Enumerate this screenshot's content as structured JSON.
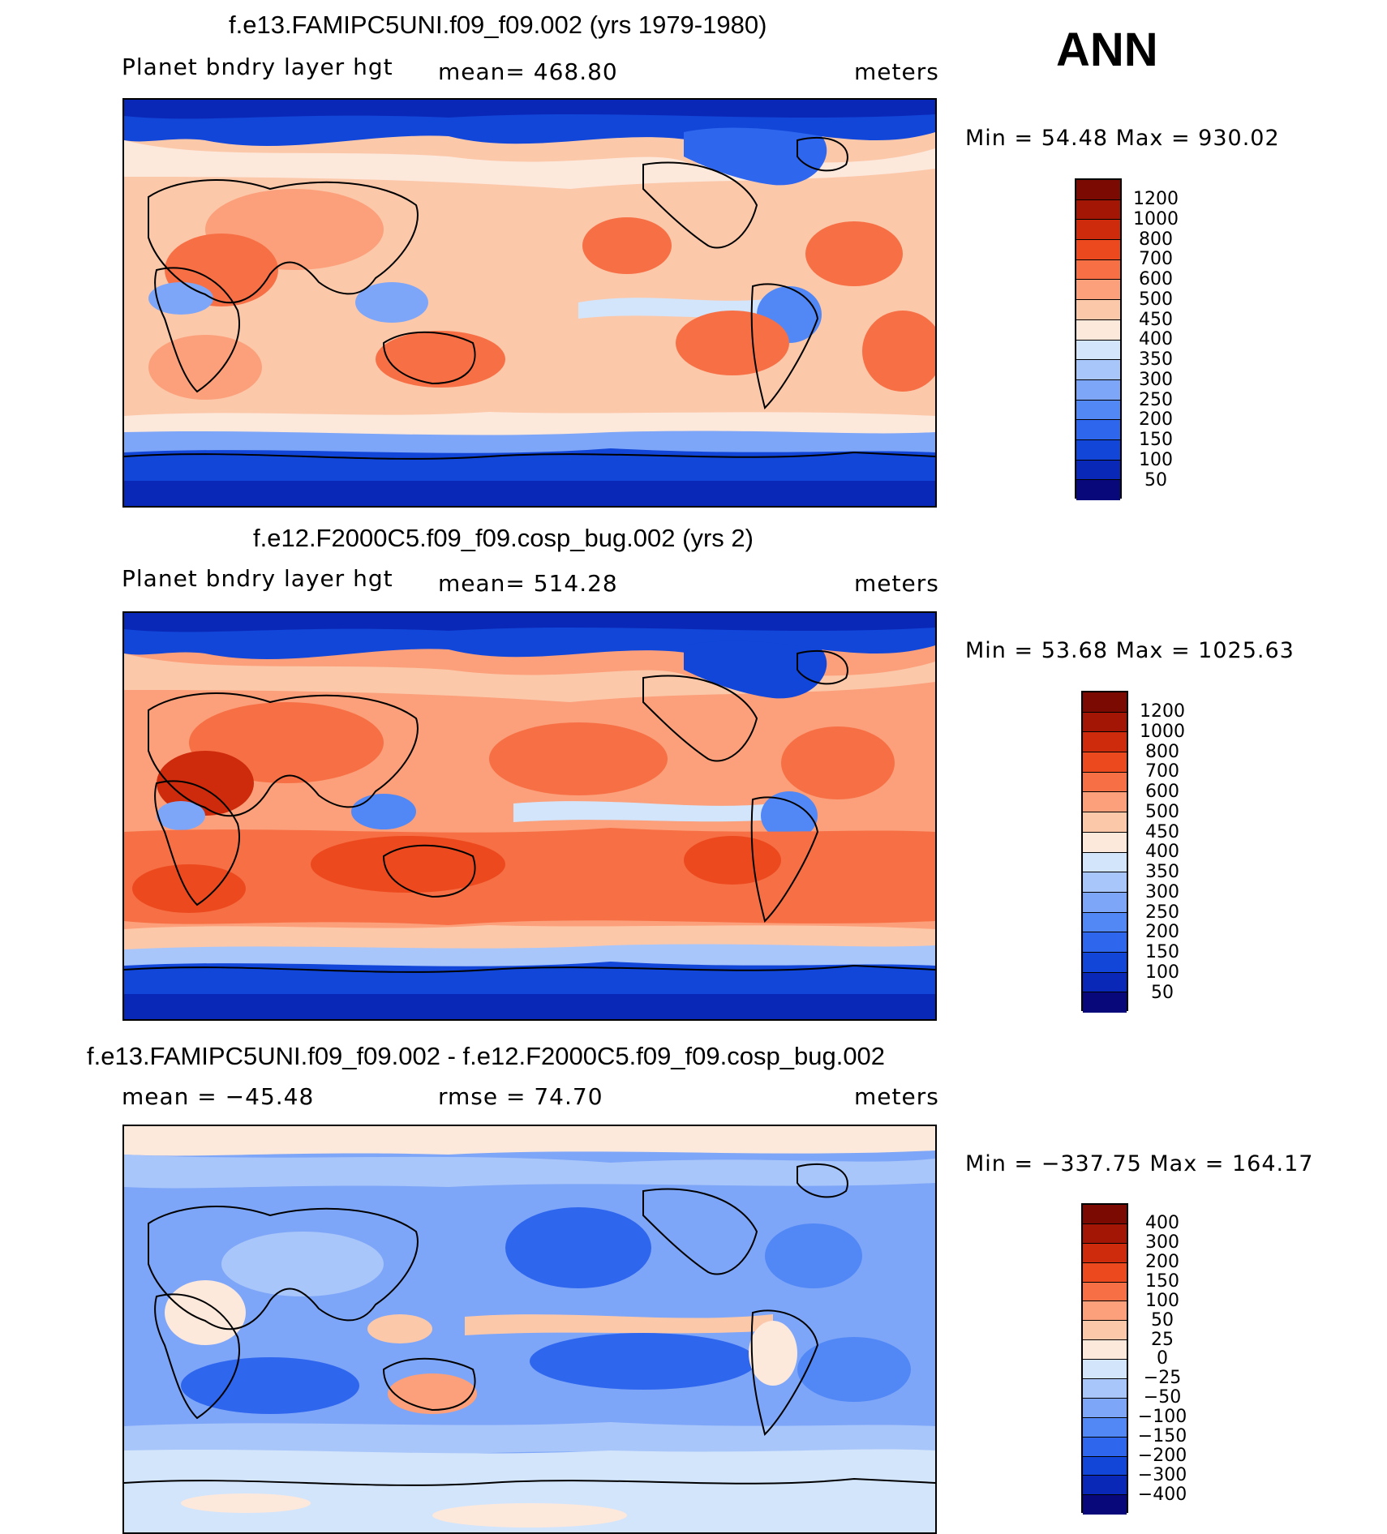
{
  "season": "ANN",
  "panels": [
    {
      "title": "f.e13.FAMIPC5UNI.f09_f09.002 (yrs 1979-1980)",
      "left_label": "Planet bndry layer hgt",
      "center_label": "mean= 468.80",
      "units": "meters",
      "minmax": "Min =   54.48 Max = 930.02",
      "colorbar_labels": [
        "1200",
        "1000",
        "800",
        "700",
        "600",
        "500",
        "450",
        "400",
        "350",
        "300",
        "250",
        "200",
        "150",
        "100",
        "50"
      ]
    },
    {
      "title": "f.e12.F2000C5.f09_f09.cosp_bug.002 (yrs 2)",
      "left_label": "Planet bndry layer hgt",
      "center_label": "mean= 514.28",
      "units": "meters",
      "minmax": "Min =   53.68 Max = 1025.63",
      "colorbar_labels": [
        "1200",
        "1000",
        "800",
        "700",
        "600",
        "500",
        "450",
        "400",
        "350",
        "300",
        "250",
        "200",
        "150",
        "100",
        "50"
      ]
    },
    {
      "title": "f.e13.FAMIPC5UNI.f09_f09.002 - f.e12.F2000C5.f09_f09.cosp_bug.002",
      "left_label": "mean = −45.48",
      "center_label": "rmse =   74.70",
      "units": "meters",
      "minmax": "Min = −337.75 Max = 164.17",
      "colorbar_labels": [
        "400",
        "300",
        "200",
        "150",
        "100",
        "50",
        "25",
        "0",
        "−25",
        "−50",
        "−100",
        "−150",
        "−200",
        "−300",
        "−400"
      ]
    }
  ],
  "chart_data": [
    {
      "type": "heatmap",
      "title": "f.e13.FAMIPC5UNI.f09_f09.002 (yrs 1979-1980)",
      "variable": "Planet bndry layer hgt",
      "units": "meters",
      "mean": 468.8,
      "min": 54.48,
      "max": 930.02,
      "levels": [
        50,
        100,
        150,
        200,
        250,
        300,
        350,
        400,
        450,
        500,
        600,
        700,
        800,
        1000,
        1200
      ],
      "colors": [
        "#08087a",
        "#0a28b8",
        "#1146d8",
        "#2f66ee",
        "#5288f5",
        "#7ea6f8",
        "#a9c6fa",
        "#d3e5fb",
        "#fde8dc",
        "#fcc8aa",
        "#fba07a",
        "#f76f45",
        "#ec4a1e",
        "#cd2b0c",
        "#a31605",
        "#7b0b02"
      ]
    },
    {
      "type": "heatmap",
      "title": "f.e12.F2000C5.f09_f09.cosp_bug.002 (yrs 2)",
      "variable": "Planet bndry layer hgt",
      "units": "meters",
      "mean": 514.28,
      "min": 53.68,
      "max": 1025.63,
      "levels": [
        50,
        100,
        150,
        200,
        250,
        300,
        350,
        400,
        450,
        500,
        600,
        700,
        800,
        1000,
        1200
      ],
      "colors": [
        "#08087a",
        "#0a28b8",
        "#1146d8",
        "#2f66ee",
        "#5288f5",
        "#7ea6f8",
        "#a9c6fa",
        "#d3e5fb",
        "#fde8dc",
        "#fcc8aa",
        "#fba07a",
        "#f76f45",
        "#ec4a1e",
        "#cd2b0c",
        "#a31605",
        "#7b0b02"
      ]
    },
    {
      "type": "heatmap",
      "title": "f.e13.FAMIPC5UNI.f09_f09.002 - f.e12.F2000C5.f09_f09.cosp_bug.002",
      "units": "meters",
      "mean": -45.48,
      "rmse": 74.7,
      "min": -337.75,
      "max": 164.17,
      "levels": [
        -400,
        -300,
        -200,
        -150,
        -100,
        -50,
        -25,
        0,
        25,
        50,
        100,
        150,
        200,
        300,
        400
      ],
      "colors": [
        "#08087a",
        "#0a28b8",
        "#1146d8",
        "#2f66ee",
        "#5288f5",
        "#7ea6f8",
        "#a9c6fa",
        "#d3e5fb",
        "#fde8dc",
        "#fcc8aa",
        "#fba07a",
        "#f76f45",
        "#ec4a1e",
        "#cd2b0c",
        "#a31605",
        "#7b0b02"
      ]
    }
  ]
}
